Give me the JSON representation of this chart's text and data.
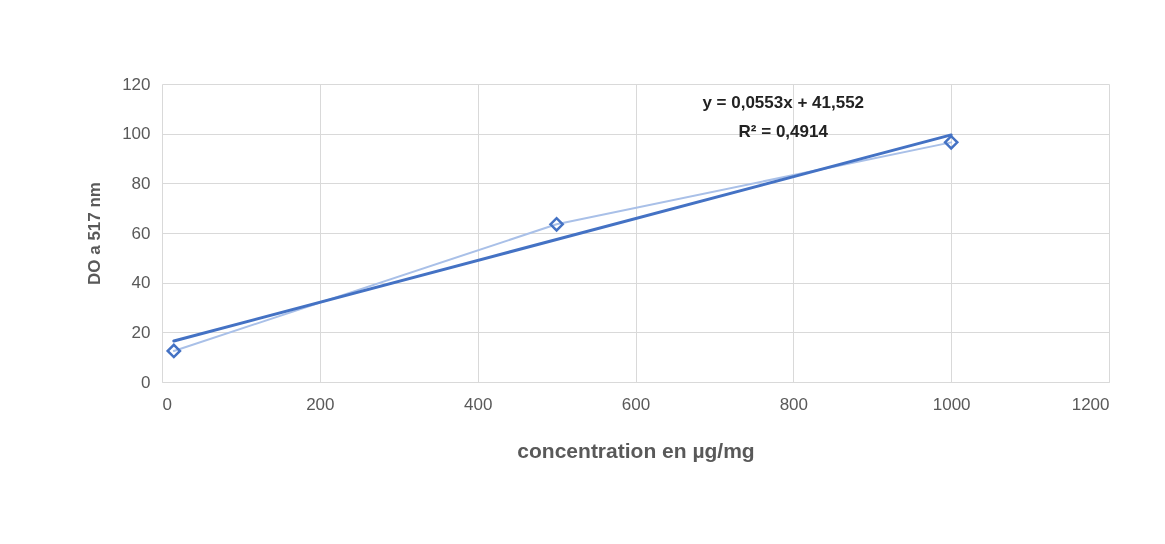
{
  "chart_data": {
    "type": "scatter",
    "xlabel": "concentration en µg/mg",
    "ylabel": "DO a 517 nm",
    "annotations": [
      "y = 0,0553x + 41,552",
      "R² = 0,4914"
    ],
    "xlim": [
      0,
      1200
    ],
    "xticks": [
      0,
      200,
      400,
      600,
      800,
      1000,
      1200
    ],
    "ylim": [
      0,
      120
    ],
    "yticks": [
      0,
      20,
      40,
      60,
      80,
      100,
      120
    ],
    "grid": true,
    "marker": "diamond",
    "series": [
      {
        "type": "line",
        "color": "#a9c0e8",
        "marker": "none",
        "x": [
          15,
          500,
          1000
        ],
        "values": [
          12.5,
          63.5,
          96.5
        ]
      },
      {
        "color": "#4472c4",
        "x": [
          15,
          500,
          1000
        ],
        "values": [
          12.5,
          63.5,
          96.5
        ]
      },
      {
        "type": "line",
        "color": "#4472c4",
        "marker": "none",
        "x": [
          15,
          1000
        ],
        "values": [
          16.5,
          99.5
        ]
      }
    ]
  }
}
